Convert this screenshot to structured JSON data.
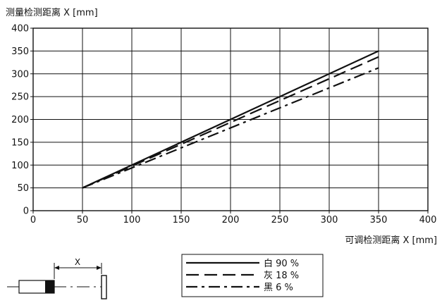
{
  "chart_data": {
    "type": "line",
    "ylabel": "测量检测距离 X [mm]",
    "xlabel": "可调检测距离 X [mm]",
    "xlim": [
      0,
      400
    ],
    "ylim": [
      0,
      400
    ],
    "x_ticks": [
      0,
      50,
      100,
      150,
      200,
      250,
      300,
      350,
      400
    ],
    "y_ticks": [
      0,
      50,
      100,
      150,
      200,
      250,
      300,
      350,
      400
    ],
    "grid": true,
    "legend_position": "below-right",
    "series": [
      {
        "name": "白 90 %",
        "style": "solid",
        "x": [
          50,
          350
        ],
        "y": [
          50,
          350
        ]
      },
      {
        "name": "灰 18 %",
        "style": "dashed",
        "x": [
          50,
          350
        ],
        "y": [
          50,
          337
        ]
      },
      {
        "name": "黑 6 %",
        "style": "dash-dot",
        "x": [
          50,
          350
        ],
        "y": [
          50,
          313
        ]
      }
    ]
  },
  "diagram": {
    "distance_label": "X"
  },
  "colors": {
    "line": "#111111",
    "grid": "#111111",
    "background": "#ffffff"
  }
}
